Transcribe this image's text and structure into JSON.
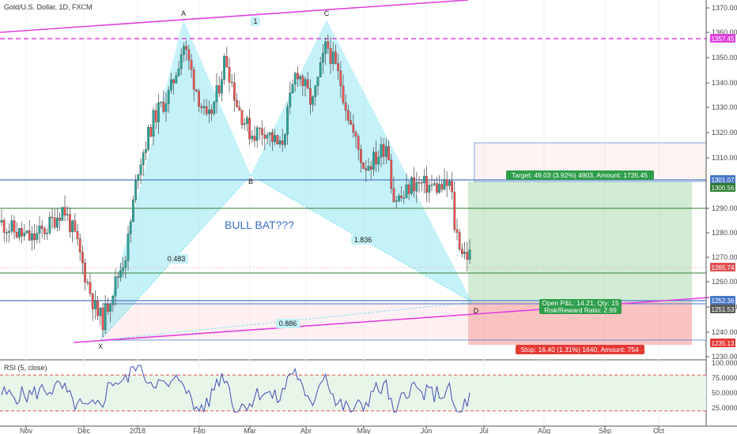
{
  "header": {
    "title": "Gold/U.S. Dollar, 1D, FXCM"
  },
  "annotations": {
    "main_label": "BULL BAT???",
    "point_labels": [
      "X",
      "A",
      "B",
      "C",
      "D"
    ],
    "leg_label_1": "1",
    "ratios": [
      "0.483",
      "1.836",
      "0.886"
    ],
    "target_text": "Target: 49.03 (3.92%) 4903, Amount: 1735.45",
    "stop_text": "Stop: 16.40 (1.31%) 1640, Amount: 754",
    "pnl_text": "Open P&L: 14.21, Qty: 15",
    "rr_text": "Risk/Reward Ratio: 2.99"
  },
  "price_tags": [
    {
      "label": "1357.45",
      "color": "#e040e0"
    },
    {
      "label": "1301.07",
      "color": "#4a78c8"
    },
    {
      "label": "1300.56",
      "color": "#2e7d32"
    },
    {
      "label": "1265.74",
      "color": "#e05050"
    },
    {
      "label": "1252.36",
      "color": "#4a78c8"
    },
    {
      "label": "1251.53",
      "color": "#5a5a5a"
    },
    {
      "label": "1235.13",
      "color": "#e53935"
    }
  ],
  "rsi": {
    "label": "RSI (5, close)",
    "ticks": [
      "100.0000",
      "75.0000",
      "50.0000",
      "25.0000"
    ]
  },
  "chart_data": [
    {
      "type": "candlestick",
      "title": "Gold/U.S. Dollar, 1D, FXCM",
      "x_ticks": [
        "Nov",
        "Dec",
        "2018",
        "Feb",
        "Mar",
        "Apr",
        "May",
        "Jun",
        "Jul",
        "Aug",
        "Sep",
        "Oct"
      ],
      "y_ticks": [
        1370,
        1360,
        1350,
        1340,
        1330,
        1320,
        1310,
        1290,
        1280,
        1270,
        1260,
        1250,
        1240,
        1230
      ],
      "ylim": [
        1228,
        1373
      ],
      "harmonic_points": [
        {
          "label": "X",
          "date": "2017-12-12",
          "price": 1236.5
        },
        {
          "label": "A",
          "date": "2018-01-25",
          "price": 1366.0
        },
        {
          "label": "B",
          "date": "2018-03-01",
          "price": 1303.5
        },
        {
          "label": "C",
          "date": "2018-04-11",
          "price": 1366.0
        },
        {
          "label": "D",
          "date": "2018-06-28",
          "price": 1251.5
        }
      ],
      "levels": {
        "horizontal_magenta": 1357.45,
        "target": 1301.07,
        "green_line_1": 1300.56,
        "green_line_2": 1290,
        "entry": 1265.74,
        "blue_level": 1252.36,
        "stop": 1235.13
      },
      "colors": {
        "up": "#26a69a",
        "down": "#ef5350",
        "pattern": "#7fe3f0",
        "trendline": "#e040e0",
        "level": "#4a78c8"
      }
    },
    {
      "type": "line",
      "title": "RSI (5, close)",
      "ylim": [
        0,
        100
      ],
      "overbought": 80,
      "oversold": 20,
      "y_ticks": [
        100,
        75,
        50,
        25
      ]
    }
  ]
}
